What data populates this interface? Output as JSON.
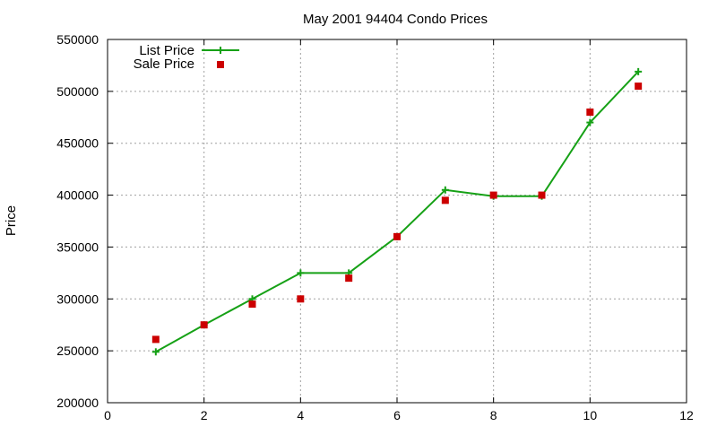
{
  "chart_data": {
    "type": "line",
    "title": "May 2001 94404 Condo Prices",
    "xlabel": "",
    "ylabel": "Price",
    "xlim": [
      0,
      12
    ],
    "ylim": [
      200000,
      550000
    ],
    "x_ticks": [
      0,
      2,
      4,
      6,
      8,
      10,
      12
    ],
    "y_ticks": [
      200000,
      250000,
      300000,
      350000,
      400000,
      450000,
      500000,
      550000
    ],
    "grid": true,
    "legend_position": "top-left",
    "series": [
      {
        "name": "List Price",
        "style": "line-with-plus-markers",
        "color": "#16a116",
        "x": [
          1,
          2,
          3,
          4,
          5,
          6,
          7,
          8,
          9,
          10,
          11
        ],
        "y": [
          249000,
          275000,
          300000,
          325000,
          325000,
          360000,
          405000,
          399000,
          399000,
          470000,
          519000
        ]
      },
      {
        "name": "Sale Price",
        "style": "square-points",
        "color": "#cc0000",
        "x": [
          1,
          2,
          3,
          4,
          5,
          6,
          7,
          8,
          9,
          10,
          11
        ],
        "y": [
          261000,
          275000,
          295000,
          300000,
          320000,
          360000,
          395000,
          400000,
          400000,
          480000,
          505000
        ]
      }
    ]
  }
}
